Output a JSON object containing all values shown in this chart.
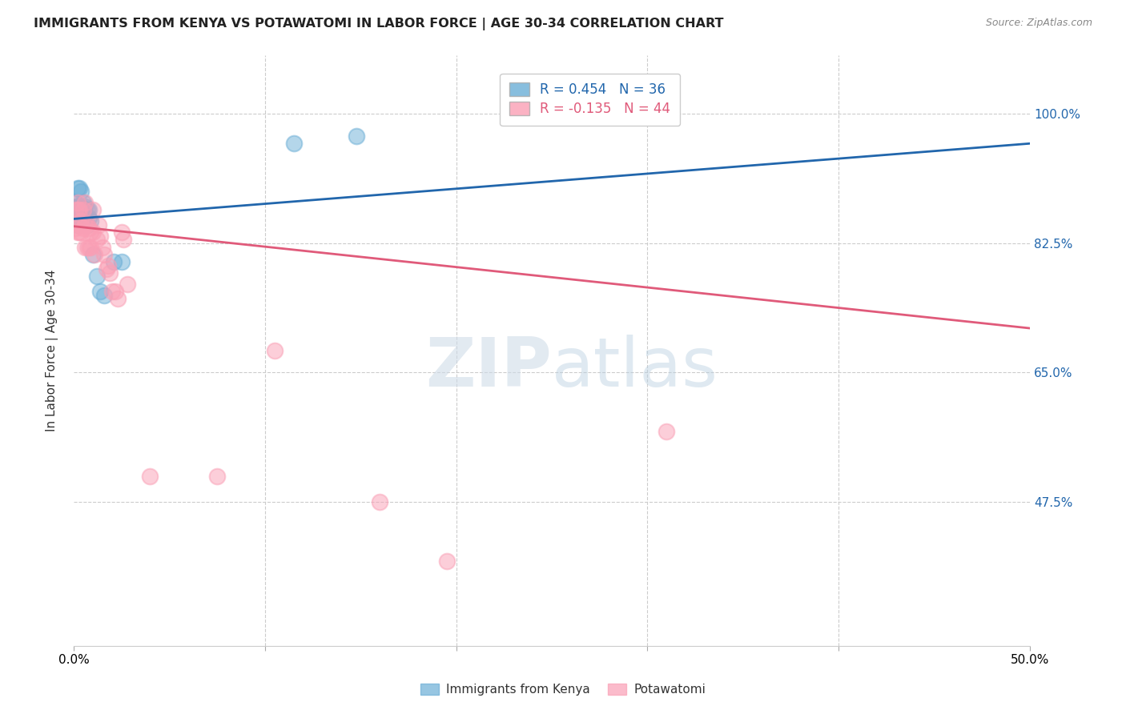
{
  "title": "IMMIGRANTS FROM KENYA VS POTAWATOMI IN LABOR FORCE | AGE 30-34 CORRELATION CHART",
  "source": "Source: ZipAtlas.com",
  "ylabel": "In Labor Force | Age 30-34",
  "y_ticks": [
    0.475,
    0.65,
    0.825,
    1.0
  ],
  "y_tick_labels": [
    "47.5%",
    "65.0%",
    "82.5%",
    "100.0%"
  ],
  "xlim": [
    0.0,
    0.5
  ],
  "ylim": [
    0.28,
    1.08
  ],
  "kenya_R": 0.454,
  "kenya_N": 36,
  "potawatomi_R": -0.135,
  "potawatomi_N": 44,
  "kenya_color": "#6baed6",
  "potawatomi_color": "#fa9fb5",
  "kenya_line_color": "#2166ac",
  "potawatomi_line_color": "#e05a7a",
  "kenya_x": [
    0.001,
    0.001,
    0.001,
    0.001,
    0.002,
    0.002,
    0.002,
    0.002,
    0.003,
    0.003,
    0.003,
    0.003,
    0.003,
    0.004,
    0.004,
    0.004,
    0.004,
    0.005,
    0.005,
    0.005,
    0.006,
    0.006,
    0.006,
    0.007,
    0.007,
    0.008,
    0.008,
    0.009,
    0.01,
    0.012,
    0.014,
    0.016,
    0.021,
    0.025,
    0.115,
    0.148
  ],
  "kenya_y": [
    0.875,
    0.88,
    0.86,
    0.87,
    0.85,
    0.875,
    0.9,
    0.87,
    0.865,
    0.875,
    0.855,
    0.87,
    0.9,
    0.86,
    0.875,
    0.87,
    0.895,
    0.86,
    0.87,
    0.88,
    0.855,
    0.865,
    0.875,
    0.85,
    0.87,
    0.86,
    0.87,
    0.855,
    0.81,
    0.78,
    0.76,
    0.755,
    0.8,
    0.8,
    0.96,
    0.97
  ],
  "potawatomi_x": [
    0.001,
    0.001,
    0.002,
    0.002,
    0.002,
    0.003,
    0.003,
    0.003,
    0.004,
    0.004,
    0.005,
    0.005,
    0.006,
    0.006,
    0.006,
    0.007,
    0.007,
    0.008,
    0.008,
    0.009,
    0.009,
    0.01,
    0.01,
    0.011,
    0.012,
    0.013,
    0.014,
    0.015,
    0.016,
    0.017,
    0.018,
    0.019,
    0.02,
    0.022,
    0.023,
    0.025,
    0.026,
    0.028,
    0.04,
    0.075,
    0.105,
    0.16,
    0.195,
    0.31
  ],
  "potawatomi_y": [
    0.87,
    0.845,
    0.88,
    0.87,
    0.84,
    0.87,
    0.85,
    0.84,
    0.855,
    0.84,
    0.87,
    0.845,
    0.88,
    0.85,
    0.82,
    0.85,
    0.82,
    0.845,
    0.82,
    0.84,
    0.82,
    0.84,
    0.87,
    0.81,
    0.83,
    0.85,
    0.835,
    0.82,
    0.81,
    0.79,
    0.795,
    0.785,
    0.76,
    0.76,
    0.75,
    0.84,
    0.83,
    0.77,
    0.51,
    0.51,
    0.68,
    0.475,
    0.395,
    0.57
  ],
  "kenya_trend_x": [
    0.0,
    0.5
  ],
  "kenya_trend_y": [
    0.858,
    0.96
  ],
  "potawatomi_trend_x": [
    0.0,
    0.5
  ],
  "potawatomi_trend_y": [
    0.848,
    0.71
  ]
}
